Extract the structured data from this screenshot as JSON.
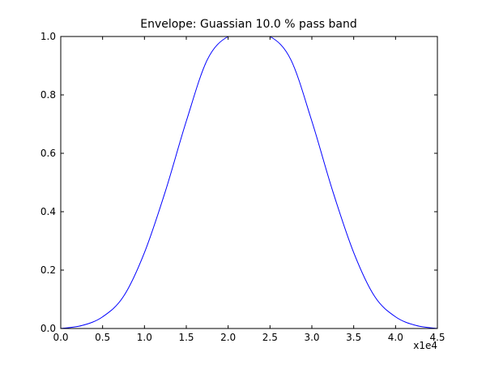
{
  "chart_data": {
    "type": "line",
    "title": "Envelope: Guassian 10.0 % pass band",
    "xlabel": "",
    "ylabel": "",
    "x_offset_text": "x1e4",
    "xlim": [
      0.0,
      4.5
    ],
    "ylim": [
      0.0,
      1.0
    ],
    "x_ticks": [
      "0.0",
      "0.5",
      "1.0",
      "1.5",
      "2.0",
      "2.5",
      "3.0",
      "3.5",
      "4.0",
      "4.5"
    ],
    "y_ticks": [
      "0.0",
      "0.2",
      "0.4",
      "0.6",
      "0.8",
      "1.0"
    ],
    "grid": false,
    "legend": "none",
    "series": [
      {
        "color": "#0000ff",
        "x": [
          0.0,
          0.25,
          0.5,
          0.75,
          1.0,
          1.25,
          1.5,
          1.75,
          2.0,
          2.25,
          2.5,
          2.75,
          3.0,
          3.25,
          3.5,
          3.75,
          4.0,
          4.25,
          4.5
        ],
        "y": [
          0.0,
          0.01,
          0.04,
          0.11,
          0.26,
          0.47,
          0.71,
          0.92,
          1.0,
          1.0,
          1.0,
          0.92,
          0.71,
          0.47,
          0.26,
          0.11,
          0.04,
          0.01,
          0.0
        ]
      }
    ]
  }
}
